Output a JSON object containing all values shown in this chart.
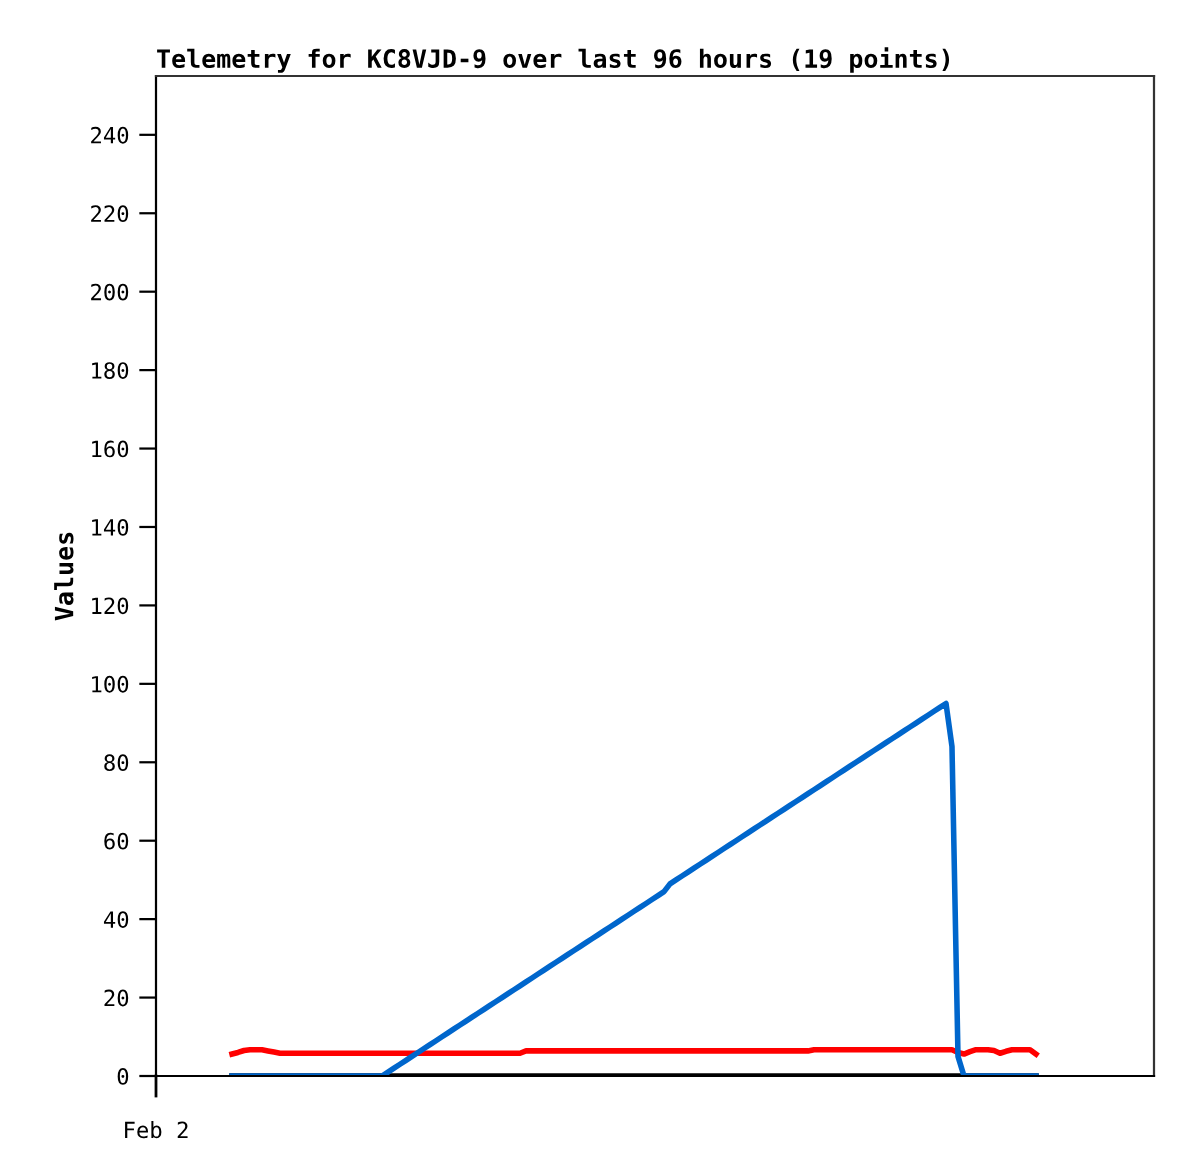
{
  "chart_data": {
    "type": "line",
    "title": "Telemetry for KC8VJD-9 over last 96 hours (19 points)",
    "ylabel": "Values",
    "annotations": [
      "Feb 2"
    ],
    "categories": [
      null,
      null,
      null,
      null,
      null,
      null,
      null,
      null,
      null,
      null,
      null,
      null,
      null,
      null,
      null,
      null,
      null,
      null,
      null,
      null,
      null,
      null,
      null,
      null,
      null,
      null,
      null,
      null,
      null,
      null,
      null,
      null,
      null,
      null,
      null,
      null,
      null,
      null,
      null,
      null,
      null,
      null,
      null,
      null,
      null,
      null,
      null,
      null,
      null,
      null,
      null,
      null,
      null,
      null,
      null,
      null,
      null,
      null,
      null,
      null,
      null,
      null,
      null,
      null,
      null,
      null,
      null,
      null,
      null,
      null,
      null,
      null,
      null,
      null,
      null,
      null,
      null,
      null,
      null,
      null,
      null,
      null,
      null,
      null,
      null,
      null,
      null,
      null,
      null,
      null,
      null,
      null,
      null,
      null,
      null,
      null,
      null,
      null,
      null,
      null,
      null,
      null,
      null,
      null,
      null,
      null,
      null,
      null,
      null,
      null,
      null,
      null,
      null,
      null,
      null,
      null,
      null,
      null,
      null,
      null,
      null,
      null,
      null,
      null,
      null,
      null,
      null,
      null,
      null,
      null,
      null,
      null,
      null,
      null,
      null
    ],
    "ylim": [
      0,
      255
    ],
    "yticks": [
      0,
      20,
      40,
      60,
      80,
      100,
      120,
      140,
      160,
      180,
      200,
      220,
      240
    ],
    "grid": false,
    "legend": false,
    "marker": "none",
    "line_style": "solid",
    "series": [
      {
        "color": "#000000",
        "values": [
          0,
          0,
          0,
          0,
          0,
          0,
          0,
          0,
          0,
          0,
          0,
          0,
          0,
          0,
          0,
          0,
          0,
          0,
          0,
          0,
          0,
          0,
          0,
          0,
          0,
          0,
          0,
          0,
          0,
          0,
          0,
          0,
          0,
          0,
          0,
          0,
          0,
          0,
          0,
          0,
          0,
          0,
          0,
          0,
          0,
          0,
          0,
          0,
          0,
          0,
          0,
          0,
          0,
          0,
          0,
          0,
          0,
          0,
          0,
          0,
          0,
          0,
          0,
          0,
          0,
          0,
          0,
          0,
          0,
          0,
          0,
          0,
          0,
          0,
          0,
          0,
          0,
          0,
          0,
          0,
          0,
          0,
          0,
          0,
          0,
          0,
          0,
          0,
          0,
          0,
          0,
          0,
          0,
          0,
          0,
          0,
          0,
          0,
          0,
          0,
          0,
          0,
          0,
          0,
          0,
          0,
          0,
          0,
          0,
          0,
          0,
          0,
          0,
          0,
          0,
          0,
          0,
          0,
          0,
          0,
          0,
          0,
          0,
          0,
          0,
          0,
          0,
          0,
          0,
          0,
          0,
          0,
          0,
          0,
          0
        ]
      },
      {
        "color": "#ff0000",
        "values": [
          5.6,
          6.0,
          6.5,
          6.7,
          6.7,
          6.7,
          6.4,
          6.1,
          5.8,
          5.8,
          5.8,
          5.8,
          5.8,
          5.8,
          5.8,
          5.8,
          5.8,
          5.8,
          5.8,
          5.8,
          5.8,
          5.8,
          5.8,
          5.8,
          5.8,
          5.8,
          5.8,
          5.8,
          5.8,
          5.8,
          5.8,
          5.8,
          5.8,
          5.8,
          5.8,
          5.8,
          5.8,
          5.8,
          5.8,
          5.8,
          5.8,
          5.8,
          5.8,
          5.8,
          5.8,
          5.8,
          5.8,
          5.8,
          5.8,
          6.4,
          6.4,
          6.4,
          6.4,
          6.4,
          6.4,
          6.4,
          6.4,
          6.4,
          6.4,
          6.4,
          6.4,
          6.4,
          6.4,
          6.4,
          6.4,
          6.4,
          6.4,
          6.4,
          6.4,
          6.4,
          6.4,
          6.4,
          6.4,
          6.4,
          6.4,
          6.4,
          6.4,
          6.4,
          6.4,
          6.4,
          6.4,
          6.4,
          6.4,
          6.4,
          6.4,
          6.4,
          6.4,
          6.4,
          6.4,
          6.4,
          6.4,
          6.4,
          6.4,
          6.4,
          6.4,
          6.4,
          6.4,
          6.7,
          6.7,
          6.7,
          6.7,
          6.7,
          6.7,
          6.7,
          6.7,
          6.7,
          6.7,
          6.7,
          6.7,
          6.7,
          6.7,
          6.7,
          6.7,
          6.7,
          6.7,
          6.7,
          6.7,
          6.7,
          6.7,
          6.7,
          6.7,
          6.0,
          5.6,
          6.2,
          6.7,
          6.7,
          6.7,
          6.5,
          5.8,
          6.3,
          6.7,
          6.7,
          6.7,
          6.7,
          5.6
        ]
      },
      {
        "color": "#0066cc",
        "values": [
          0,
          0,
          0,
          0,
          0,
          0,
          0,
          0,
          0,
          0,
          0,
          0,
          0,
          0,
          0,
          0,
          0,
          0,
          0,
          0,
          0,
          0,
          0,
          0,
          0,
          0,
          1,
          2,
          3,
          4,
          5,
          6,
          7,
          8,
          9,
          10,
          11,
          12,
          13,
          14,
          15,
          16,
          17,
          18,
          19,
          20,
          21,
          22,
          23,
          24,
          25,
          26,
          27,
          28,
          29,
          30,
          31,
          32,
          33,
          34,
          35,
          36,
          37,
          38,
          39,
          40,
          41,
          42,
          43,
          44,
          45,
          46,
          47,
          49,
          50,
          51,
          52,
          53,
          54,
          55,
          56,
          57,
          58,
          59,
          60,
          61,
          62,
          63,
          64,
          65,
          66,
          67,
          68,
          69,
          70,
          71,
          72,
          73,
          74,
          75,
          76,
          77,
          78,
          79,
          80,
          81,
          82,
          83,
          84,
          85,
          86,
          87,
          88,
          89,
          90,
          91,
          92,
          93,
          94,
          95,
          84,
          5,
          0,
          0,
          0,
          0,
          0,
          0,
          0,
          0,
          0,
          0,
          0,
          0,
          0
        ]
      }
    ]
  }
}
